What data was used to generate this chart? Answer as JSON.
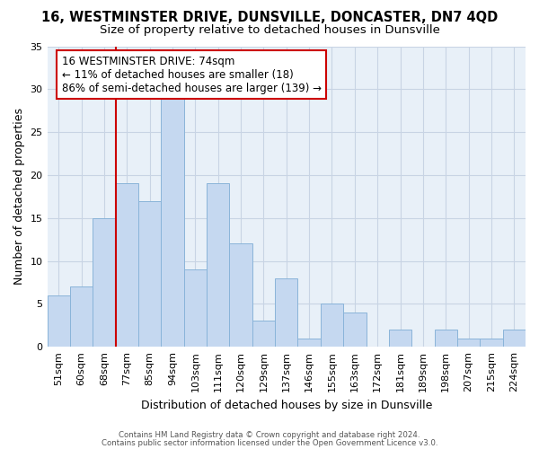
{
  "title1": "16, WESTMINSTER DRIVE, DUNSVILLE, DONCASTER, DN7 4QD",
  "title2": "Size of property relative to detached houses in Dunsville",
  "xlabel": "Distribution of detached houses by size in Dunsville",
  "ylabel": "Number of detached properties",
  "categories": [
    "51sqm",
    "60sqm",
    "68sqm",
    "77sqm",
    "85sqm",
    "94sqm",
    "103sqm",
    "111sqm",
    "120sqm",
    "129sqm",
    "137sqm",
    "146sqm",
    "155sqm",
    "163sqm",
    "172sqm",
    "181sqm",
    "189sqm",
    "198sqm",
    "207sqm",
    "215sqm",
    "224sqm"
  ],
  "values": [
    6,
    7,
    15,
    19,
    17,
    29,
    9,
    19,
    12,
    3,
    8,
    1,
    5,
    4,
    0,
    2,
    0,
    2,
    1,
    1,
    2
  ],
  "bar_color": "#c5d8f0",
  "bar_edgecolor": "#8ab4d9",
  "vline_color": "#cc0000",
  "vline_x": 3.0,
  "annotation_text": "16 WESTMINSTER DRIVE: 74sqm\n← 11% of detached houses are smaller (18)\n86% of semi-detached houses are larger (139) →",
  "annotation_boxcolor": "white",
  "annotation_edgecolor": "#cc0000",
  "footnote1": "Contains HM Land Registry data © Crown copyright and database right 2024.",
  "footnote2": "Contains public sector information licensed under the Open Government Licence v3.0.",
  "ylim": [
    0,
    35
  ],
  "yticks": [
    0,
    5,
    10,
    15,
    20,
    25,
    30,
    35
  ],
  "grid_color": "#c8d4e4",
  "plot_bg_color": "#e8f0f8",
  "title1_fontsize": 10.5,
  "title2_fontsize": 9.5,
  "tick_fontsize": 8,
  "ylabel_fontsize": 9,
  "xlabel_fontsize": 9,
  "annot_fontsize": 8.5
}
